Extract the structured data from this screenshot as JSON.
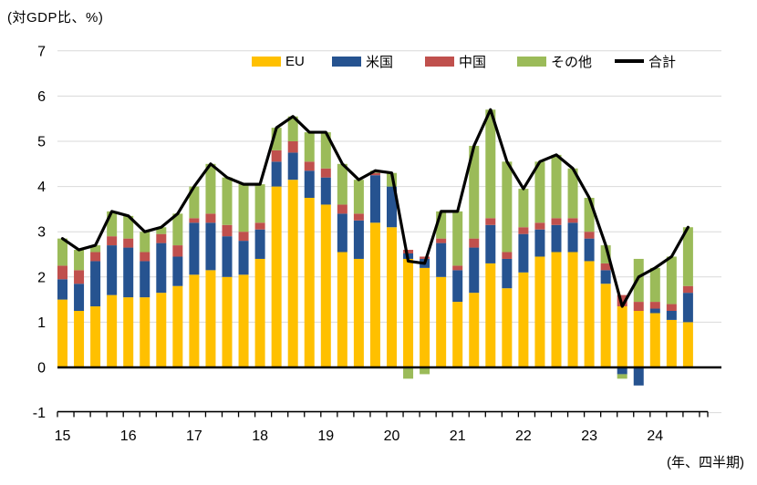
{
  "chart_data": {
    "type": "bar",
    "subtype": "stacked-bar-with-total-line",
    "title": "(対GDP比、%)",
    "x_axis_note": "(年、四半期)",
    "background": "#FFFFFF",
    "grid": true,
    "grid_color": "#D9D9D9",
    "axis_color": "#000000",
    "legend_position": "top-inside",
    "ylim": [
      -1,
      7
    ],
    "y_ticks": [
      7,
      6,
      5,
      4,
      3,
      2,
      1,
      0,
      -1
    ],
    "year_labels": [
      "15",
      "16",
      "17",
      "18",
      "19",
      "20",
      "21",
      "22",
      "23",
      "24"
    ],
    "categories": [
      "2015Q1",
      "2015Q2",
      "2015Q3",
      "2015Q4",
      "2016Q1",
      "2016Q2",
      "2016Q3",
      "2016Q4",
      "2017Q1",
      "2017Q2",
      "2017Q3",
      "2017Q4",
      "2018Q1",
      "2018Q2",
      "2018Q3",
      "2018Q4",
      "2019Q1",
      "2019Q2",
      "2019Q3",
      "2019Q4",
      "2020Q1",
      "2020Q2",
      "2020Q3",
      "2020Q4",
      "2021Q1",
      "2021Q2",
      "2021Q3",
      "2021Q4",
      "2022Q1",
      "2022Q2",
      "2022Q3",
      "2022Q4",
      "2023Q1",
      "2023Q2",
      "2023Q3",
      "2023Q4",
      "2024Q1",
      "2024Q2",
      "2024Q3"
    ],
    "series": [
      {
        "name": "EU",
        "color": "#FFC000",
        "values": [
          1.5,
          1.25,
          1.35,
          1.6,
          1.55,
          1.55,
          1.65,
          1.8,
          2.05,
          2.15,
          2.0,
          2.05,
          2.4,
          4.0,
          4.15,
          3.75,
          3.6,
          2.55,
          2.4,
          3.2,
          3.1,
          2.4,
          2.2,
          2.0,
          1.45,
          1.65,
          2.3,
          1.75,
          2.1,
          2.45,
          2.55,
          2.55,
          2.35,
          1.85,
          1.35,
          1.25,
          1.2,
          1.05,
          1.0
        ]
      },
      {
        "name": "米国",
        "color": "#265390",
        "values": [
          0.45,
          0.6,
          1.0,
          1.1,
          1.1,
          0.8,
          1.1,
          0.65,
          1.15,
          1.05,
          0.9,
          0.75,
          0.65,
          0.55,
          0.6,
          0.6,
          0.6,
          0.85,
          0.85,
          1.05,
          0.9,
          0.12,
          0.2,
          0.75,
          0.7,
          1.0,
          0.85,
          0.65,
          0.85,
          0.6,
          0.6,
          0.65,
          0.5,
          0.3,
          -0.15,
          -0.4,
          0.1,
          0.2,
          0.65
        ]
      },
      {
        "name": "中国",
        "color": "#C0504D",
        "values": [
          0.3,
          0.3,
          0.2,
          0.2,
          0.2,
          0.2,
          0.2,
          0.25,
          0.1,
          0.2,
          0.25,
          0.2,
          0.15,
          0.25,
          0.25,
          0.2,
          0.2,
          0.2,
          0.15,
          0.05,
          0.0,
          0.08,
          0.05,
          0.1,
          0.1,
          0.2,
          0.15,
          0.15,
          0.15,
          0.15,
          0.15,
          0.1,
          0.15,
          0.15,
          0.25,
          0.2,
          0.15,
          0.15,
          0.15
        ]
      },
      {
        "name": "その他",
        "color": "#9BBB59",
        "values": [
          0.6,
          0.45,
          0.15,
          0.55,
          0.5,
          0.45,
          0.15,
          0.7,
          0.7,
          1.1,
          1.05,
          1.05,
          0.85,
          0.5,
          0.55,
          0.65,
          0.8,
          0.9,
          0.75,
          0.05,
          0.3,
          -0.25,
          -0.15,
          0.6,
          1.2,
          2.05,
          2.4,
          2.0,
          0.85,
          1.35,
          1.4,
          1.1,
          0.75,
          0.4,
          -0.1,
          0.95,
          0.75,
          1.05,
          1.3
        ]
      }
    ],
    "line_series": {
      "name": "合計",
      "color": "#000000",
      "values": [
        2.85,
        2.6,
        2.7,
        3.45,
        3.35,
        3.0,
        3.1,
        3.4,
        4.0,
        4.5,
        4.2,
        4.05,
        4.05,
        5.3,
        5.55,
        5.2,
        5.2,
        4.5,
        4.15,
        4.35,
        4.3,
        2.35,
        2.3,
        3.45,
        3.45,
        4.9,
        5.7,
        4.55,
        3.95,
        4.55,
        4.7,
        4.4,
        3.75,
        2.7,
        1.35,
        2.0,
        2.2,
        2.45,
        3.1
      ]
    }
  }
}
